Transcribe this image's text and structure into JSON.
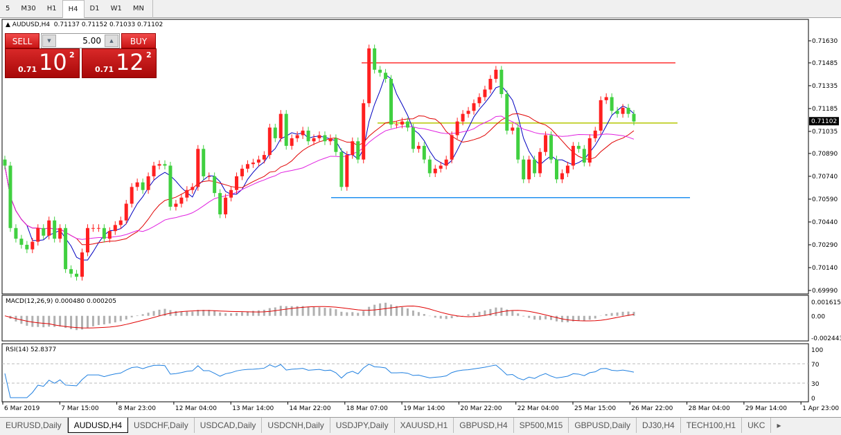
{
  "timeframes": [
    "5",
    "M30",
    "H1",
    "H4",
    "D1",
    "W1",
    "MN"
  ],
  "active_timeframe": "H4",
  "chart": {
    "title": "AUDUSD,H4",
    "ohlc": "0.71137 0.71152 0.71033 0.71102",
    "current_price": "0.71102",
    "price_axis": [
      "0.71630",
      "0.71485",
      "0.71335",
      "0.71185",
      "0.71035",
      "0.70890",
      "0.70740",
      "0.70590",
      "0.70440",
      "0.70290",
      "0.70140",
      "0.69990"
    ],
    "time_axis": [
      "6 Mar 2019",
      "7 Mar 15:00",
      "8 Mar 23:00",
      "12 Mar 04:00",
      "13 Mar 14:00",
      "14 Mar 22:00",
      "18 Mar 07:00",
      "19 Mar 14:00",
      "20 Mar 22:00",
      "22 Mar 04:00",
      "25 Mar 15:00",
      "26 Mar 22:00",
      "28 Mar 04:00",
      "29 Mar 14:00",
      "1 Apr 23:00"
    ],
    "closes": [
      0.7081,
      0.704,
      0.7033,
      0.7029,
      0.7026,
      0.7031,
      0.704,
      0.7035,
      0.7045,
      0.7033,
      0.704,
      0.7013,
      0.701,
      0.7008,
      0.7024,
      0.704,
      0.704,
      0.704,
      0.7033,
      0.7038,
      0.7042,
      0.7045,
      0.7056,
      0.7067,
      0.707,
      0.7065,
      0.7074,
      0.7081,
      0.7082,
      0.7081,
      0.7054,
      0.7056,
      0.706,
      0.7065,
      0.7067,
      0.7092,
      0.7074,
      0.7074,
      0.7063,
      0.7049,
      0.706,
      0.7065,
      0.7074,
      0.7079,
      0.7082,
      0.7083,
      0.7085,
      0.7088,
      0.7106,
      0.7099,
      0.7115,
      0.7094,
      0.7099,
      0.7101,
      0.7104,
      0.7097,
      0.7099,
      0.7101,
      0.7097,
      0.7099,
      0.709,
      0.7067,
      0.7088,
      0.7097,
      0.7085,
      0.7122,
      0.7158,
      0.7144,
      0.7142,
      0.7138,
      0.7108,
      0.7108,
      0.711,
      0.7106,
      0.7092,
      0.7094,
      0.7085,
      0.7076,
      0.7079,
      0.7081,
      0.7085,
      0.7101,
      0.711,
      0.7115,
      0.7117,
      0.7122,
      0.7126,
      0.7131,
      0.7138,
      0.7144,
      0.7128,
      0.7104,
      0.7106,
      0.7085,
      0.7072,
      0.7085,
      0.7076,
      0.709,
      0.7101,
      0.7085,
      0.7072,
      0.7076,
      0.7081,
      0.7094,
      0.7092,
      0.7083,
      0.7099,
      0.7104,
      0.7124,
      0.7126,
      0.7117,
      0.7115,
      0.7119,
      0.7115,
      0.711
    ],
    "levels": [
      {
        "price": 0.71485,
        "color": "#ff3030"
      },
      {
        "price": 0.7109,
        "color": "#b4c800"
      },
      {
        "price": 0.706,
        "color": "#2090f0"
      }
    ],
    "bull_color": "#ff2020",
    "bear_color": "#40d040"
  },
  "trade": {
    "sell": "SELL",
    "buy": "BUY",
    "lot": "5.00",
    "sell_prefix": "0.71",
    "sell_main": "10",
    "sell_sup": "2",
    "buy_prefix": "0.71",
    "buy_main": "12",
    "buy_sup": "2"
  },
  "macd": {
    "label": "MACD(12,26,9) 0.000480 0.000205",
    "axis": [
      "0.001615",
      "0.00",
      "-0.002443"
    ]
  },
  "rsi": {
    "label": "RSI(14) 52.8377",
    "axis": [
      "100",
      "70",
      "30",
      "0"
    ]
  },
  "tabs": [
    "EURUSD,Daily",
    "AUDUSD,H4",
    "USDCHF,Daily",
    "USDCAD,Daily",
    "USDCNH,Daily",
    "USDJPY,Daily",
    "XAUUSD,H1",
    "GBPUSD,H4",
    "SP500,M15",
    "GBPUSD,Daily",
    "DJ30,H4",
    "TECH100,H1",
    "UKC"
  ],
  "active_tab": "AUDUSD,H4"
}
